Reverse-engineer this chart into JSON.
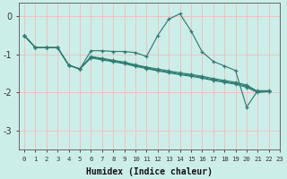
{
  "xlabel": "Humidex (Indice chaleur)",
  "background_color": "#cceee8",
  "grid_color": "#f0c0c0",
  "line_color": "#2e7d72",
  "xlim": [
    -0.5,
    23
  ],
  "ylim": [
    -3.5,
    0.35
  ],
  "yticks": [
    0,
    -1,
    -2,
    -3
  ],
  "xtick_labels": [
    "0",
    "1",
    "2",
    "3",
    "4",
    "5",
    "6",
    "7",
    "8",
    "9",
    "10",
    "11",
    "12",
    "13",
    "14",
    "15",
    "16",
    "17",
    "18",
    "19",
    "20",
    "21",
    "22",
    "23"
  ],
  "line1_x": [
    0,
    1,
    2,
    3,
    4,
    5,
    6,
    7,
    8,
    9,
    10,
    11,
    12,
    13,
    14,
    15,
    16,
    17,
    18,
    19,
    20,
    21,
    22
  ],
  "line1_y": [
    -0.5,
    -0.82,
    -0.82,
    -0.82,
    -1.28,
    -1.38,
    -0.9,
    -0.9,
    -0.92,
    -0.92,
    -0.95,
    -1.05,
    -0.5,
    -0.07,
    0.07,
    -0.38,
    -0.93,
    -1.18,
    -1.3,
    -1.42,
    -2.38,
    -1.95,
    -1.95
  ],
  "line2_x": [
    0,
    1,
    2,
    3,
    4,
    5,
    6,
    7,
    8,
    9,
    10,
    11,
    12,
    13,
    14,
    15,
    16,
    17,
    18,
    19,
    20,
    21,
    22
  ],
  "line2_y": [
    -0.5,
    -0.82,
    -0.82,
    -0.82,
    -1.28,
    -1.38,
    -1.05,
    -1.1,
    -1.15,
    -1.2,
    -1.27,
    -1.33,
    -1.38,
    -1.43,
    -1.48,
    -1.52,
    -1.57,
    -1.63,
    -1.68,
    -1.73,
    -1.8,
    -1.97,
    -1.97
  ],
  "line3_x": [
    0,
    1,
    2,
    3,
    4,
    5,
    6,
    7,
    8,
    9,
    10,
    11,
    12,
    13,
    14,
    15,
    16,
    17,
    18,
    19,
    20,
    21,
    22
  ],
  "line3_y": [
    -0.5,
    -0.82,
    -0.82,
    -0.82,
    -1.28,
    -1.38,
    -1.07,
    -1.12,
    -1.17,
    -1.22,
    -1.29,
    -1.35,
    -1.41,
    -1.46,
    -1.51,
    -1.55,
    -1.6,
    -1.66,
    -1.71,
    -1.76,
    -1.83,
    -1.97,
    -1.97
  ],
  "line4_x": [
    0,
    1,
    2,
    3,
    4,
    5,
    6,
    7,
    8,
    9,
    10,
    11,
    12,
    13,
    14,
    15,
    16,
    17,
    18,
    19,
    20,
    21,
    22
  ],
  "line4_y": [
    -0.5,
    -0.82,
    -0.82,
    -0.82,
    -1.28,
    -1.38,
    -1.09,
    -1.14,
    -1.19,
    -1.24,
    -1.31,
    -1.37,
    -1.43,
    -1.48,
    -1.53,
    -1.57,
    -1.62,
    -1.68,
    -1.73,
    -1.78,
    -1.86,
    -2.0,
    -1.97
  ]
}
